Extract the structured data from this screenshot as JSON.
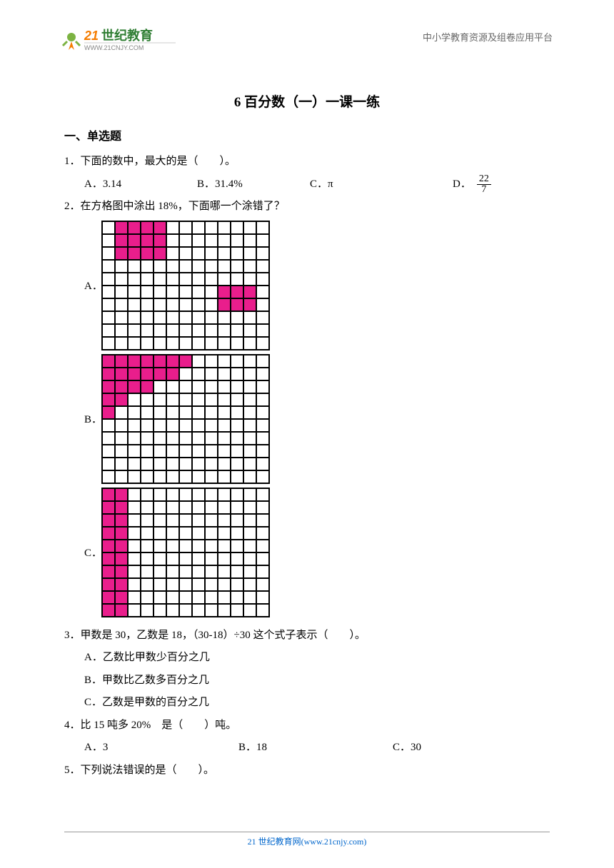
{
  "header": {
    "logo_main": "世纪教育",
    "logo_prefix": "21",
    "logo_url": "WWW.21CNJY.COM",
    "right_text": "中小学教育资源及组卷应用平台"
  },
  "title": "6 百分数（一）一课一练",
  "section1_heading": "一、单选题",
  "q1": {
    "text": "1．下面的数中，最大的是（　　）。",
    "optA": "A．3.14",
    "optB": "B．31.4%",
    "optC": "C．π",
    "optD_label": "D．",
    "optD_num": "22",
    "optD_den": "7"
  },
  "q2": {
    "text": "2．在方格图中涂出 18%，下面哪一个涂错了？",
    "labelA": "A．",
    "labelB": "B．",
    "labelC": "C．",
    "grid_cols": 13,
    "grid_rows": 10,
    "fill_color": "#e91e8c",
    "border_color": "#000000",
    "cell_size": 18,
    "gridA_filled": [
      [
        0,
        1
      ],
      [
        0,
        2
      ],
      [
        0,
        3
      ],
      [
        0,
        4
      ],
      [
        1,
        1
      ],
      [
        1,
        2
      ],
      [
        1,
        3
      ],
      [
        1,
        4
      ],
      [
        2,
        1
      ],
      [
        2,
        2
      ],
      [
        2,
        3
      ],
      [
        2,
        4
      ],
      [
        5,
        9
      ],
      [
        5,
        10
      ],
      [
        5,
        11
      ],
      [
        6,
        9
      ],
      [
        6,
        10
      ],
      [
        6,
        11
      ]
    ],
    "gridB_filled": [
      [
        0,
        0
      ],
      [
        0,
        1
      ],
      [
        0,
        2
      ],
      [
        0,
        3
      ],
      [
        0,
        4
      ],
      [
        0,
        5
      ],
      [
        0,
        6
      ],
      [
        1,
        0
      ],
      [
        1,
        1
      ],
      [
        1,
        2
      ],
      [
        1,
        3
      ],
      [
        1,
        4
      ],
      [
        1,
        5
      ],
      [
        2,
        0
      ],
      [
        2,
        1
      ],
      [
        2,
        2
      ],
      [
        2,
        3
      ],
      [
        3,
        0
      ],
      [
        3,
        1
      ],
      [
        4,
        0
      ]
    ],
    "gridC_filled": [
      [
        0,
        0
      ],
      [
        0,
        1
      ],
      [
        1,
        0
      ],
      [
        1,
        1
      ],
      [
        2,
        0
      ],
      [
        2,
        1
      ],
      [
        3,
        0
      ],
      [
        3,
        1
      ],
      [
        4,
        0
      ],
      [
        4,
        1
      ],
      [
        5,
        0
      ],
      [
        5,
        1
      ],
      [
        6,
        0
      ],
      [
        6,
        1
      ],
      [
        7,
        0
      ],
      [
        7,
        1
      ],
      [
        8,
        0
      ],
      [
        8,
        1
      ],
      [
        9,
        0
      ],
      [
        9,
        1
      ]
    ]
  },
  "q3": {
    "text": "3．甲数是 30，乙数是 18，（30-18）÷30 这个式子表示（　　）。",
    "optA": "A．乙数比甲数少百分之几",
    "optB": "B．甲数比乙数多百分之几",
    "optC": "C．乙数是甲数的百分之几"
  },
  "q4": {
    "text": "4．比 15 吨多 20% 是（　　）吨。",
    "optA": "A．3",
    "optB": "B．18",
    "optC": "C．30"
  },
  "q5": {
    "text": "5．下列说法错误的是（　　）。"
  },
  "footer": "21 世纪教育网(www.21cnjy.com)"
}
